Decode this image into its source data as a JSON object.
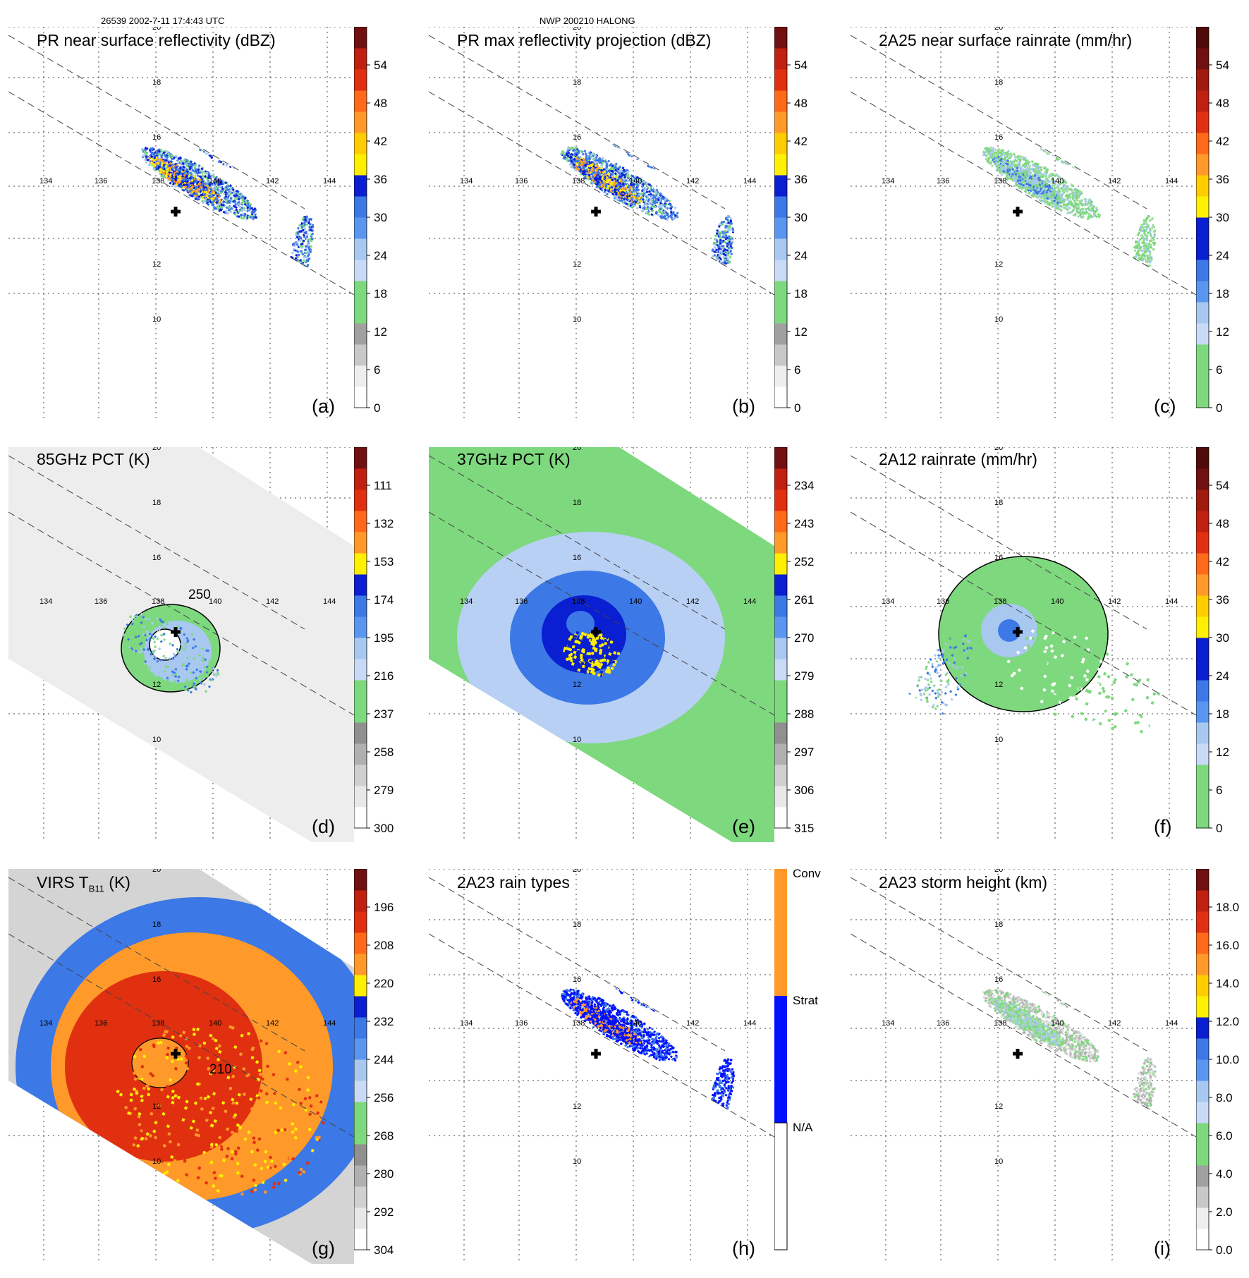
{
  "header": {
    "left": "26539 2002-7-11 17:4:43 UTC",
    "center": "NWP 200210 HALONG"
  },
  "axes": {
    "lon_ticks": [
      "134",
      "136",
      "138",
      "140",
      "142",
      "144"
    ],
    "lat_ticks": [
      "20",
      "18",
      "16",
      "12",
      "10"
    ]
  },
  "colors": {
    "gray": "#b5b5b5",
    "green": "#7ed87e",
    "lightblue": "#a8c8f0",
    "blue": "#3c78e6",
    "darkblue": "#0a1ed2",
    "yellow": "#ffef00",
    "orange": "#ff9a2a",
    "red": "#e03010",
    "darkred": "#701010",
    "text_gray": "#333333"
  },
  "panels": [
    {
      "id": "a",
      "title": "PR near surface reflectivity (dBZ)",
      "label": "(a)",
      "colorbar": [
        "54",
        "48",
        "42",
        "36",
        "30",
        "24",
        "18",
        "12",
        "6",
        "0"
      ]
    },
    {
      "id": "b",
      "title": "PR max reflectivity projection (dBZ)",
      "label": "(b)",
      "colorbar": [
        "54",
        "48",
        "42",
        "36",
        "30",
        "24",
        "18",
        "12",
        "6",
        "0"
      ]
    },
    {
      "id": "c",
      "title": "2A25 near surface rainrate (mm/hr)",
      "label": "(c)",
      "colorbar": [
        "54",
        "48",
        "42",
        "36",
        "30",
        "24",
        "18",
        "12",
        "6",
        "0"
      ]
    },
    {
      "id": "d",
      "title": "85GHz PCT (K)",
      "label": "(d)",
      "contour_label": "250",
      "colorbar": [
        "111",
        "132",
        "153",
        "174",
        "195",
        "216",
        "237",
        "258",
        "279",
        "300"
      ]
    },
    {
      "id": "e",
      "title": "37GHz PCT (K)",
      "label": "(e)",
      "colorbar": [
        "234",
        "243",
        "252",
        "261",
        "270",
        "279",
        "288",
        "297",
        "306",
        "315"
      ]
    },
    {
      "id": "f",
      "title": "2A12 rainrate (mm/hr)",
      "label": "(f)",
      "colorbar": [
        "54",
        "48",
        "42",
        "36",
        "30",
        "24",
        "18",
        "12",
        "6",
        "0"
      ]
    },
    {
      "id": "g",
      "title": "VIRS T",
      "title_sub": "B11",
      "title_tail": "(K)",
      "label": "(g)",
      "contour_label": "210",
      "colorbar": [
        "196",
        "208",
        "220",
        "232",
        "244",
        "256",
        "268",
        "280",
        "292",
        "304"
      ]
    },
    {
      "id": "h",
      "title": "2A23 rain types",
      "label": "(h)",
      "colorbar_categories": [
        "Conv",
        "Strat",
        "N/A"
      ]
    },
    {
      "id": "i",
      "title": "2A23 storm height (km)",
      "label": "(i)",
      "colorbar": [
        "18.0",
        "16.0",
        "14.0",
        "12.0",
        "10.0",
        "8.0",
        "6.0",
        "4.0",
        "2.0",
        "0.0"
      ]
    }
  ],
  "chart_data": [
    {
      "type": "heatmap",
      "panel": "a",
      "title": "PR near surface reflectivity (dBZ)",
      "colorbar_range": [
        0,
        60
      ],
      "colorbar_ticks": [
        0,
        6,
        12,
        18,
        24,
        30,
        36,
        42,
        48,
        54
      ]
    },
    {
      "type": "heatmap",
      "panel": "b",
      "title": "PR max reflectivity projection (dBZ)",
      "colorbar_range": [
        0,
        60
      ],
      "colorbar_ticks": [
        0,
        6,
        12,
        18,
        24,
        30,
        36,
        42,
        48,
        54
      ]
    },
    {
      "type": "heatmap",
      "panel": "c",
      "title": "2A25 near surface rainrate (mm/hr)",
      "colorbar_range": [
        0,
        60
      ],
      "colorbar_ticks": [
        0,
        6,
        12,
        18,
        24,
        30,
        36,
        42,
        48,
        54
      ]
    },
    {
      "type": "heatmap",
      "panel": "d",
      "title": "85GHz PCT (K)",
      "colorbar_range": [
        300,
        90
      ],
      "colorbar_ticks": [
        300,
        279,
        258,
        237,
        216,
        195,
        174,
        153,
        132,
        111
      ],
      "contour": 250
    },
    {
      "type": "heatmap",
      "panel": "e",
      "title": "37GHz PCT (K)",
      "colorbar_range": [
        315,
        225
      ],
      "colorbar_ticks": [
        315,
        306,
        297,
        288,
        279,
        270,
        261,
        252,
        243,
        234
      ]
    },
    {
      "type": "heatmap",
      "panel": "f",
      "title": "2A12 rainrate (mm/hr)",
      "colorbar_range": [
        0,
        60
      ],
      "colorbar_ticks": [
        0,
        6,
        12,
        18,
        24,
        30,
        36,
        42,
        48,
        54
      ]
    },
    {
      "type": "heatmap",
      "panel": "g",
      "title": "VIRS TB11 (K)",
      "colorbar_range": [
        304,
        184
      ],
      "colorbar_ticks": [
        304,
        292,
        280,
        268,
        256,
        244,
        232,
        220,
        208,
        196
      ],
      "contour": 210
    },
    {
      "type": "heatmap",
      "panel": "h",
      "title": "2A23 rain types",
      "categories": [
        "N/A",
        "Strat",
        "Conv"
      ]
    },
    {
      "type": "heatmap",
      "panel": "i",
      "title": "2A23 storm height (km)",
      "colorbar_range": [
        0,
        20
      ],
      "colorbar_ticks": [
        0,
        2,
        4,
        6,
        8,
        10,
        12,
        14,
        16,
        18
      ]
    }
  ]
}
